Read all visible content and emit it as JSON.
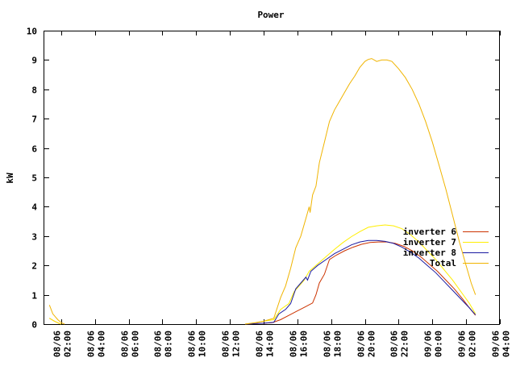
{
  "chart_data": {
    "type": "line",
    "title": "Power",
    "ylabel": "kW",
    "xlabel": "",
    "ylim": [
      0,
      10
    ],
    "xlim_hours": [
      1.0,
      28.0
    ],
    "yticks": [
      0,
      1,
      2,
      3,
      4,
      5,
      6,
      7,
      8,
      9,
      10
    ],
    "xticks": [
      {
        "t": 2,
        "label": "08/06 02:00"
      },
      {
        "t": 4,
        "label": "08/06 04:00"
      },
      {
        "t": 6,
        "label": "08/06 06:00"
      },
      {
        "t": 8,
        "label": "08/06 08:00"
      },
      {
        "t": 10,
        "label": "08/06 10:00"
      },
      {
        "t": 12,
        "label": "08/06 12:00"
      },
      {
        "t": 14,
        "label": "08/06 14:00"
      },
      {
        "t": 16,
        "label": "08/06 16:00"
      },
      {
        "t": 18,
        "label": "08/06 18:00"
      },
      {
        "t": 20,
        "label": "08/06 20:00"
      },
      {
        "t": 22,
        "label": "08/06 22:00"
      },
      {
        "t": 24,
        "label": "09/06 00:00"
      },
      {
        "t": 26,
        "label": "09/06 02:00"
      },
      {
        "t": 28,
        "label": "09/06 04:00"
      }
    ],
    "legend_position": "right",
    "series": [
      {
        "name": "inverter 6",
        "color": "#cc3300",
        "points": [
          [
            1.3,
            0.2
          ],
          [
            1.6,
            0.1
          ],
          [
            1.9,
            0.02
          ],
          [
            2.0,
            0.0
          ],
          [
            12.9,
            0.0
          ],
          [
            14.5,
            0.05
          ],
          [
            15.0,
            0.15
          ],
          [
            15.5,
            0.3
          ],
          [
            16.0,
            0.45
          ],
          [
            16.5,
            0.6
          ],
          [
            16.9,
            0.72
          ],
          [
            17.1,
            1.0
          ],
          [
            17.3,
            1.4
          ],
          [
            17.6,
            1.7
          ],
          [
            17.9,
            2.2
          ],
          [
            18.3,
            2.35
          ],
          [
            18.8,
            2.5
          ],
          [
            19.3,
            2.62
          ],
          [
            19.8,
            2.72
          ],
          [
            20.3,
            2.78
          ],
          [
            20.8,
            2.8
          ],
          [
            21.3,
            2.8
          ],
          [
            21.8,
            2.75
          ],
          [
            22.3,
            2.65
          ],
          [
            22.8,
            2.5
          ],
          [
            23.3,
            2.3
          ],
          [
            23.8,
            2.05
          ],
          [
            24.3,
            1.8
          ],
          [
            24.8,
            1.5
          ],
          [
            25.3,
            1.2
          ],
          [
            25.8,
            0.85
          ],
          [
            26.2,
            0.55
          ],
          [
            26.55,
            0.3
          ]
        ]
      },
      {
        "name": "inverter 7",
        "color": "#ffee00",
        "points": [
          [
            1.3,
            0.2
          ],
          [
            1.6,
            0.1
          ],
          [
            1.9,
            0.02
          ],
          [
            2.0,
            0.0
          ],
          [
            12.9,
            0.0
          ],
          [
            13.5,
            0.05
          ],
          [
            14.0,
            0.1
          ],
          [
            14.6,
            0.15
          ],
          [
            15.0,
            0.5
          ],
          [
            15.5,
            0.7
          ],
          [
            15.8,
            1.1
          ],
          [
            16.1,
            1.3
          ],
          [
            16.4,
            1.5
          ],
          [
            16.7,
            1.8
          ],
          [
            17.2,
            2.05
          ],
          [
            17.7,
            2.3
          ],
          [
            18.2,
            2.55
          ],
          [
            18.7,
            2.78
          ],
          [
            19.2,
            2.98
          ],
          [
            19.7,
            3.15
          ],
          [
            20.2,
            3.3
          ],
          [
            20.7,
            3.35
          ],
          [
            21.2,
            3.38
          ],
          [
            21.7,
            3.35
          ],
          [
            22.2,
            3.25
          ],
          [
            22.7,
            3.05
          ],
          [
            23.2,
            2.8
          ],
          [
            23.7,
            2.5
          ],
          [
            24.2,
            2.2
          ],
          [
            24.7,
            1.85
          ],
          [
            25.2,
            1.5
          ],
          [
            25.7,
            1.1
          ],
          [
            26.2,
            0.7
          ],
          [
            26.55,
            0.35
          ]
        ]
      },
      {
        "name": "inverter 8",
        "color": "#1a1aa0",
        "points": [
          [
            12.9,
            0.0
          ],
          [
            14.0,
            0.03
          ],
          [
            14.6,
            0.06
          ],
          [
            14.9,
            0.35
          ],
          [
            15.3,
            0.5
          ],
          [
            15.6,
            0.7
          ],
          [
            15.9,
            1.2
          ],
          [
            16.2,
            1.4
          ],
          [
            16.5,
            1.6
          ],
          [
            16.6,
            1.5
          ],
          [
            16.8,
            1.8
          ],
          [
            17.2,
            2.0
          ],
          [
            17.7,
            2.2
          ],
          [
            18.2,
            2.4
          ],
          [
            18.7,
            2.55
          ],
          [
            19.2,
            2.7
          ],
          [
            19.7,
            2.8
          ],
          [
            20.2,
            2.85
          ],
          [
            20.7,
            2.85
          ],
          [
            21.2,
            2.82
          ],
          [
            21.7,
            2.75
          ],
          [
            22.2,
            2.62
          ],
          [
            22.7,
            2.45
          ],
          [
            23.2,
            2.25
          ],
          [
            23.7,
            2.0
          ],
          [
            24.2,
            1.75
          ],
          [
            24.7,
            1.45
          ],
          [
            25.2,
            1.15
          ],
          [
            25.7,
            0.85
          ],
          [
            26.2,
            0.55
          ],
          [
            26.55,
            0.32
          ]
        ]
      },
      {
        "name": "Total",
        "color": "#f0b400",
        "points": [
          [
            1.3,
            0.65
          ],
          [
            1.5,
            0.35
          ],
          [
            1.8,
            0.15
          ],
          [
            2.0,
            0.05
          ],
          [
            2.2,
            0.0
          ],
          [
            12.9,
            0.0
          ],
          [
            13.5,
            0.05
          ],
          [
            14.0,
            0.1
          ],
          [
            14.6,
            0.2
          ],
          [
            15.0,
            0.9
          ],
          [
            15.3,
            1.3
          ],
          [
            15.6,
            1.9
          ],
          [
            15.9,
            2.6
          ],
          [
            16.2,
            3.0
          ],
          [
            16.5,
            3.6
          ],
          [
            16.7,
            4.0
          ],
          [
            16.75,
            3.8
          ],
          [
            16.9,
            4.4
          ],
          [
            17.1,
            4.7
          ],
          [
            17.3,
            5.5
          ],
          [
            17.6,
            6.2
          ],
          [
            17.9,
            6.9
          ],
          [
            18.2,
            7.3
          ],
          [
            18.5,
            7.6
          ],
          [
            18.8,
            7.9
          ],
          [
            19.1,
            8.2
          ],
          [
            19.4,
            8.45
          ],
          [
            19.7,
            8.75
          ],
          [
            20.0,
            8.95
          ],
          [
            20.2,
            9.02
          ],
          [
            20.4,
            9.05
          ],
          [
            20.7,
            8.95
          ],
          [
            21.0,
            9.0
          ],
          [
            21.3,
            9.0
          ],
          [
            21.6,
            8.95
          ],
          [
            22.0,
            8.7
          ],
          [
            22.4,
            8.4
          ],
          [
            22.8,
            8.0
          ],
          [
            23.2,
            7.5
          ],
          [
            23.6,
            6.9
          ],
          [
            24.0,
            6.2
          ],
          [
            24.4,
            5.4
          ],
          [
            24.8,
            4.6
          ],
          [
            25.2,
            3.7
          ],
          [
            25.6,
            2.8
          ],
          [
            26.0,
            2.0
          ],
          [
            26.3,
            1.4
          ],
          [
            26.55,
            1.0
          ]
        ]
      }
    ]
  }
}
